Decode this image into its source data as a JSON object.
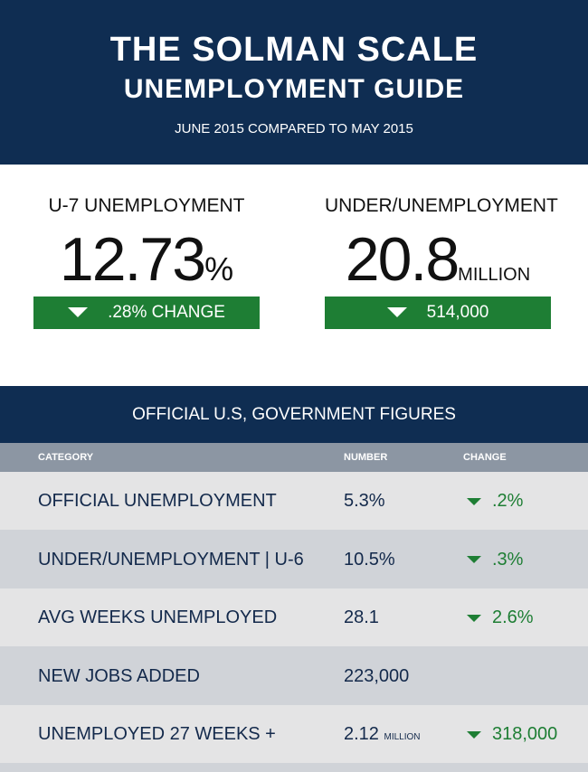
{
  "header": {
    "title": "THE SOLMAN SCALE",
    "subtitle": "UNEMPLOYMENT GUIDE",
    "date": "JUNE 2015 COMPARED TO MAY 2015"
  },
  "stats": [
    {
      "label": "U-7 UNEMPLOYMENT",
      "value": "12.73",
      "unit": "%",
      "change": ".28% CHANGE"
    },
    {
      "label": "UNDER/UNEMPLOYMENT",
      "value": "20.8",
      "unit": "MILLION",
      "change": "514,000"
    }
  ],
  "table": {
    "title": "OFFICIAL U.S, GOVERNMENT FIGURES",
    "columns": [
      "CATEGORY",
      "NUMBER",
      "CHANGE"
    ],
    "rows": [
      {
        "category": "OFFICIAL UNEMPLOYMENT",
        "number": "5.3%",
        "change": ".2%"
      },
      {
        "category": "UNDER/UNEMPLOYMENT | U-6",
        "number": "10.5%",
        "change": ".3%"
      },
      {
        "category": "AVG WEEKS UNEMPLOYED",
        "number": "28.1",
        "change": "2.6%"
      },
      {
        "category": "NEW JOBS ADDED",
        "number": "223,000"
      },
      {
        "category": "UNEMPLOYED 27 WEEKS +",
        "number": "2.12",
        "number_unit": "MILLION",
        "change": "318,000"
      }
    ]
  }
}
